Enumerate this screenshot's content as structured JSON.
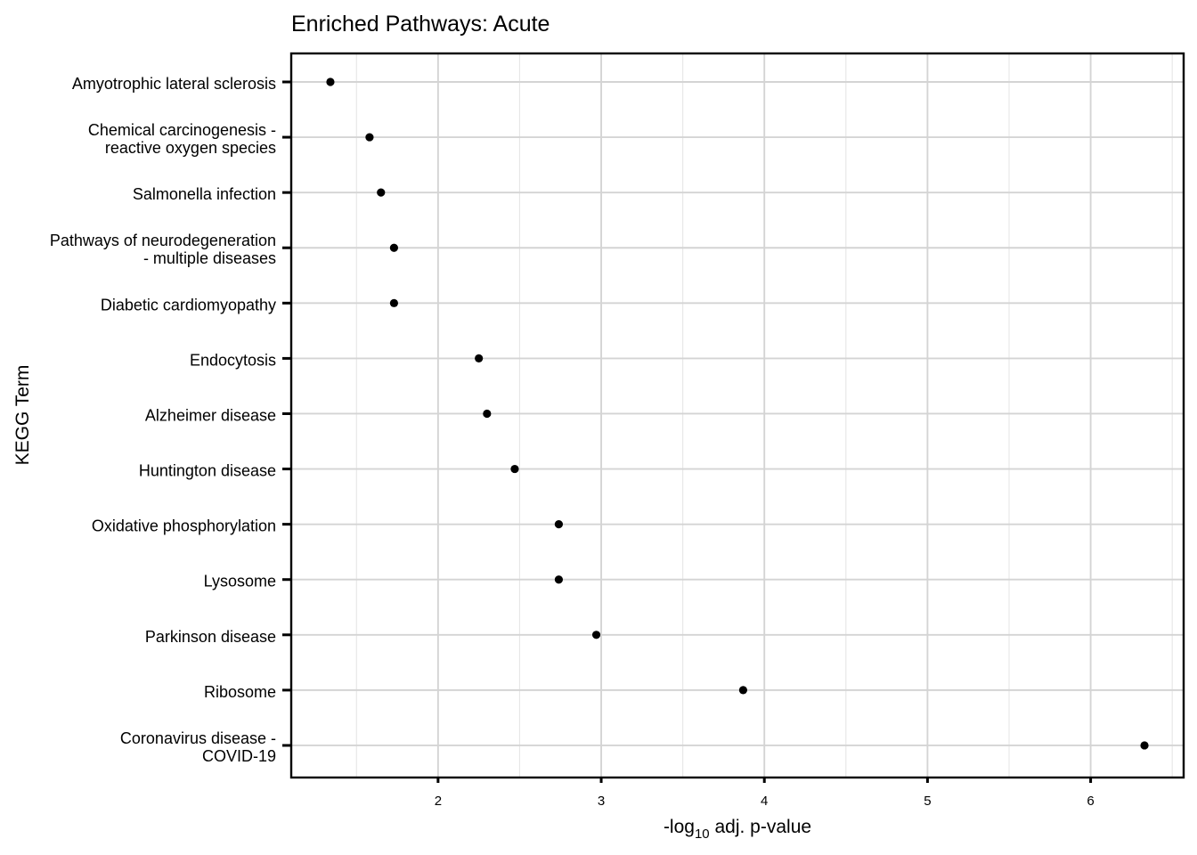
{
  "chart_data": {
    "type": "scatter",
    "title": "Enriched Pathways: Acute",
    "xlabel": {
      "prefix": "-log",
      "subscript": "10",
      "suffix": " adj. p-value"
    },
    "ylabel": "KEGG Term",
    "xlim": [
      1.1,
      6.57
    ],
    "xticks": [
      2,
      3,
      4,
      5,
      6
    ],
    "grid": true,
    "legend": "none",
    "categories": [
      [
        "Amyotrophic lateral sclerosis"
      ],
      [
        "Chemical carcinogenesis -",
        "reactive oxygen species"
      ],
      [
        "Salmonella infection"
      ],
      [
        "Pathways of neurodegeneration",
        "- multiple diseases"
      ],
      [
        "Diabetic cardiomyopathy"
      ],
      [
        "Endocytosis"
      ],
      [
        "Alzheimer disease"
      ],
      [
        "Huntington disease"
      ],
      [
        "Oxidative phosphorylation"
      ],
      [
        "Lysosome"
      ],
      [
        "Parkinson disease"
      ],
      [
        "Ribosome"
      ],
      [
        "Coronavirus disease -",
        "COVID-19"
      ]
    ],
    "values": [
      1.34,
      1.58,
      1.65,
      1.73,
      1.73,
      2.25,
      2.3,
      2.47,
      2.74,
      2.74,
      2.97,
      3.87,
      6.33
    ],
    "point_color": "#000000"
  }
}
